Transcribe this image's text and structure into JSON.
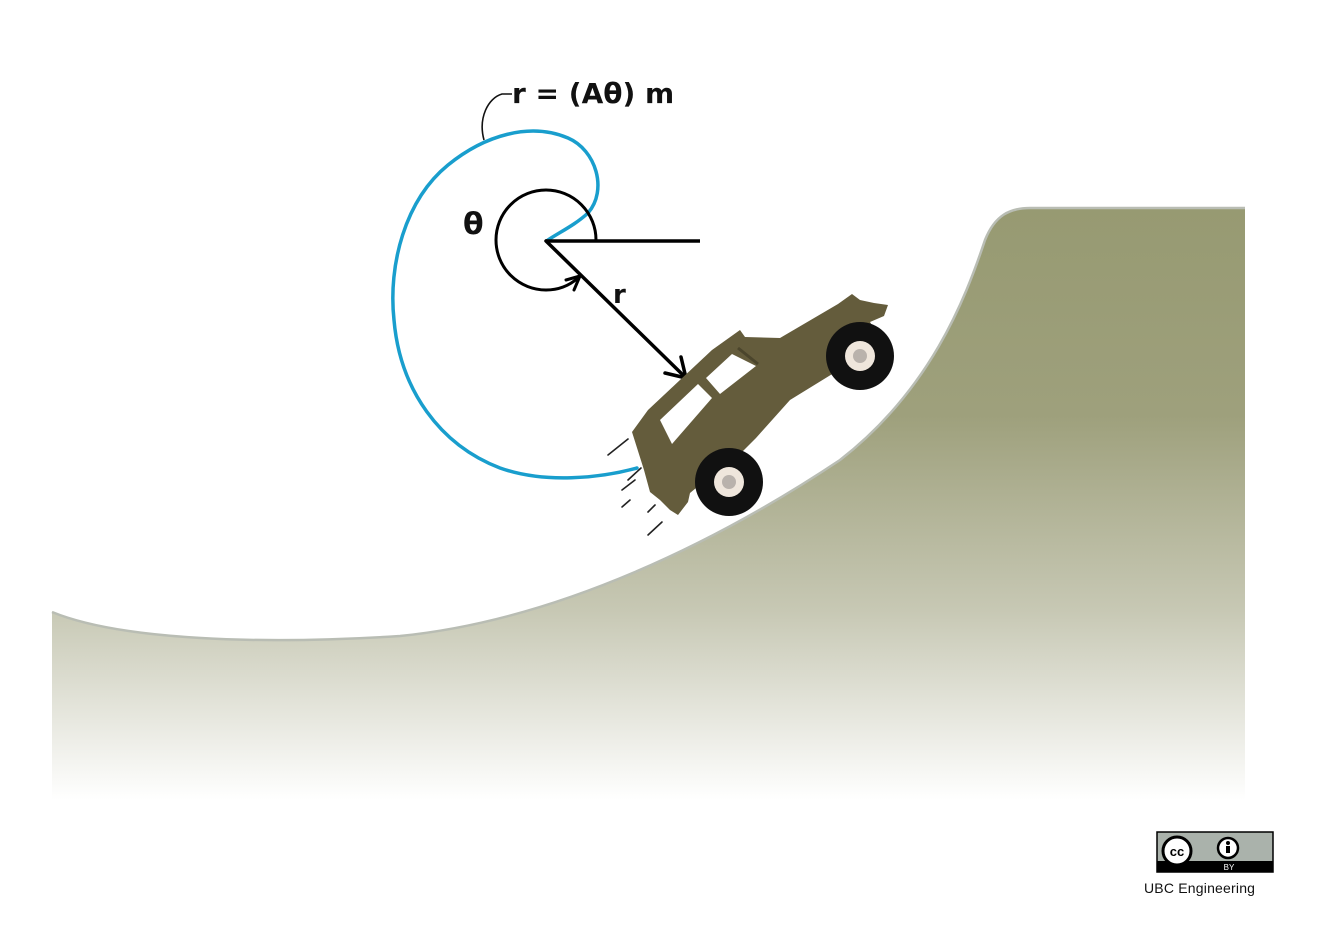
{
  "diagram": {
    "equation_label": "r = (Aθ) m",
    "angle_label": "θ",
    "radius_label": "r",
    "colors": {
      "spiral": "#199ecd",
      "ground_top": "#979a72",
      "ground_bottom": "#ffffff",
      "ground_edge": "#b9bdb4",
      "car_body": "#645c3c",
      "tire": "#111111",
      "hub": "#efe6dc",
      "arrow": "#000000"
    }
  },
  "license": {
    "badge_cc": "cc",
    "badge_by": "BY",
    "credit": "UBC Engineering"
  }
}
